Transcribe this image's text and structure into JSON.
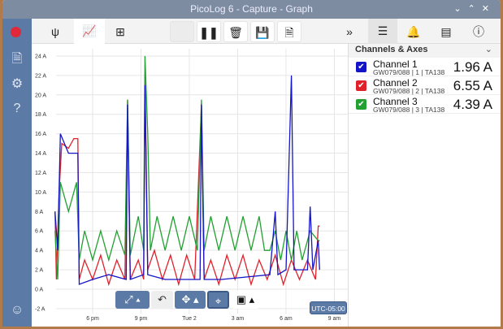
{
  "window": {
    "title": "PicoLog 6 - Capture - Graph",
    "controls": [
      "⌄",
      "⌃",
      "✕"
    ]
  },
  "sidebar": {
    "icons": [
      "record-icon",
      "file-icon",
      "settings-icon",
      "help-icon",
      "smiley-icon"
    ]
  },
  "toolbar": {
    "icons": [
      "usb-icon",
      "graph-icon",
      "table-icon",
      "pause-icon",
      "delete-icon",
      "save-icon",
      "export-icon",
      "more-icon",
      "channels-list-icon",
      "alarm-icon",
      "notes-icon",
      "info-icon"
    ]
  },
  "panel": {
    "title": "Channels & Axes",
    "channels": [
      {
        "name": "Channel 1",
        "source": "GW079/088 | 1 | TA138",
        "value": "1.96 A",
        "color": "#1414c8"
      },
      {
        "name": "Channel 2",
        "source": "GW079/088 | 2 | TA138",
        "value": "6.55 A",
        "color": "#e0202a"
      },
      {
        "name": "Channel 3",
        "source": "GW079/088 | 3 | TA138",
        "value": "4.39 A",
        "color": "#22a032"
      }
    ]
  },
  "graph_tools": {
    "timezone": "UTC-05:00"
  },
  "chart_data": {
    "type": "line",
    "ylim": [
      -2,
      25
    ],
    "grid": true,
    "y_ticks": [
      "-2 A",
      "0 A",
      "2 A",
      "4 A",
      "6 A",
      "8 A",
      "10 A",
      "12 A",
      "14 A",
      "16 A",
      "18 A",
      "20 A",
      "22 A",
      "24 A"
    ],
    "x_ticks": [
      {
        "label": "6 pm",
        "t": "Mon 18:00"
      },
      {
        "label": "9 pm",
        "t": "Mon 21:00"
      },
      {
        "label": "Tue 2",
        "t": "Tue 00:00"
      },
      {
        "label": "3 am",
        "t": "Tue 03:00"
      },
      {
        "label": "6 am",
        "t": "Tue 06:00"
      },
      {
        "label": "9 am",
        "t": "Tue 09:00"
      }
    ],
    "series": [
      {
        "name": "Channel 2",
        "color": "#e0202a",
        "points": [
          [
            "Mon 15:40",
            8
          ],
          [
            "Mon 15:45",
            1
          ],
          [
            "Mon 15:55",
            10
          ],
          [
            "Mon 16:05",
            15
          ],
          [
            "Mon 16:30",
            14.5
          ],
          [
            "Mon 16:50",
            15.5
          ],
          [
            "Mon 17:05",
            15.5
          ],
          [
            "Mon 17:10",
            1
          ],
          [
            "Mon 17:30",
            3
          ],
          [
            "Mon 18:00",
            1
          ],
          [
            "Mon 18:30",
            3.5
          ],
          [
            "Mon 19:00",
            0.5
          ],
          [
            "Mon 19:30",
            3
          ],
          [
            "Mon 20:00",
            1
          ],
          [
            "Mon 20:10",
            19.5
          ],
          [
            "Mon 20:20",
            1
          ],
          [
            "Mon 20:50",
            3
          ],
          [
            "Mon 21:10",
            1
          ],
          [
            "Mon 21:15",
            22
          ],
          [
            "Mon 21:25",
            2
          ],
          [
            "Mon 21:50",
            4
          ],
          [
            "Mon 22:20",
            1
          ],
          [
            "Mon 22:50",
            3.5
          ],
          [
            "Mon 23:20",
            0.5
          ],
          [
            "Mon 23:50",
            3.5
          ],
          [
            "Tue 00:20",
            1
          ],
          [
            "Tue 00:45",
            19
          ],
          [
            "Tue 00:55",
            1
          ],
          [
            "Tue 01:20",
            3
          ],
          [
            "Tue 01:50",
            0.5
          ],
          [
            "Tue 02:20",
            3.5
          ],
          [
            "Tue 02:50",
            1
          ],
          [
            "Tue 03:20",
            3.5
          ],
          [
            "Tue 03:50",
            0.5
          ],
          [
            "Tue 04:20",
            3
          ],
          [
            "Tue 04:50",
            1
          ],
          [
            "Tue 05:20",
            3.5
          ],
          [
            "Tue 05:50",
            0.5
          ],
          [
            "Tue 06:20",
            3
          ],
          [
            "Tue 06:50",
            1
          ],
          [
            "Tue 07:20",
            3
          ],
          [
            "Tue 07:50",
            1
          ],
          [
            "Tue 08:00",
            6.5
          ],
          [
            "Tue 08:05",
            6.5
          ]
        ]
      },
      {
        "name": "Channel 3",
        "color": "#22a032",
        "points": [
          [
            "Mon 15:40",
            6
          ],
          [
            "Mon 15:50",
            1
          ],
          [
            "Mon 16:00",
            11
          ],
          [
            "Mon 16:30",
            8
          ],
          [
            "Mon 17:00",
            11
          ],
          [
            "Mon 17:10",
            3
          ],
          [
            "Mon 17:30",
            6
          ],
          [
            "Mon 18:00",
            3
          ],
          [
            "Mon 18:30",
            6
          ],
          [
            "Mon 19:00",
            3
          ],
          [
            "Mon 19:30",
            6
          ],
          [
            "Mon 20:00",
            3.5
          ],
          [
            "Mon 20:10",
            19.5
          ],
          [
            "Mon 20:20",
            3.5
          ],
          [
            "Mon 20:50",
            7.5
          ],
          [
            "Mon 21:10",
            4
          ],
          [
            "Mon 21:15",
            24
          ],
          [
            "Mon 21:25",
            16
          ],
          [
            "Mon 21:35",
            4
          ],
          [
            "Mon 22:00",
            7.5
          ],
          [
            "Mon 22:30",
            4
          ],
          [
            "Mon 23:00",
            7.5
          ],
          [
            "Mon 23:30",
            4
          ],
          [
            "Tue 00:00",
            7.5
          ],
          [
            "Tue 00:30",
            4
          ],
          [
            "Tue 00:45",
            19.5
          ],
          [
            "Tue 00:55",
            4
          ],
          [
            "Tue 01:20",
            7.5
          ],
          [
            "Tue 01:50",
            4
          ],
          [
            "Tue 02:20",
            7.5
          ],
          [
            "Tue 02:50",
            4
          ],
          [
            "Tue 03:20",
            7.5
          ],
          [
            "Tue 03:50",
            4
          ],
          [
            "Tue 04:20",
            7.5
          ],
          [
            "Tue 04:40",
            4
          ],
          [
            "Tue 05:00",
            4
          ],
          [
            "Tue 05:20",
            6
          ],
          [
            "Tue 05:40",
            3
          ],
          [
            "Tue 06:00",
            6
          ],
          [
            "Tue 06:20",
            3
          ],
          [
            "Tue 06:40",
            6
          ],
          [
            "Tue 07:00",
            3
          ],
          [
            "Tue 07:30",
            6
          ],
          [
            "Tue 08:00",
            5
          ],
          [
            "Tue 08:05",
            5
          ]
        ]
      },
      {
        "name": "Channel 1",
        "color": "#1414c8",
        "points": [
          [
            "Mon 15:40",
            8
          ],
          [
            "Mon 15:50",
            4
          ],
          [
            "Mon 16:00",
            16
          ],
          [
            "Mon 16:15",
            15
          ],
          [
            "Mon 16:30",
            14
          ],
          [
            "Mon 17:05",
            14
          ],
          [
            "Mon 17:10",
            0.5
          ],
          [
            "Mon 18:00",
            1
          ],
          [
            "Mon 19:00",
            1.5
          ],
          [
            "Mon 20:05",
            1
          ],
          [
            "Mon 20:10",
            19
          ],
          [
            "Mon 20:20",
            1
          ],
          [
            "Mon 21:10",
            1.5
          ],
          [
            "Mon 21:15",
            21
          ],
          [
            "Mon 21:25",
            1.5
          ],
          [
            "Mon 22:30",
            1
          ],
          [
            "Tue 00:40",
            1
          ],
          [
            "Tue 00:45",
            19
          ],
          [
            "Tue 00:55",
            1
          ],
          [
            "Tue 02:00",
            1
          ],
          [
            "Tue 05:00",
            1.5
          ],
          [
            "Tue 05:20",
            8
          ],
          [
            "Tue 05:30",
            1.5
          ],
          [
            "Tue 06:00",
            2
          ],
          [
            "Tue 06:20",
            22
          ],
          [
            "Tue 06:30",
            2
          ],
          [
            "Tue 07:00",
            2
          ],
          [
            "Tue 07:20",
            2
          ],
          [
            "Tue 07:30",
            8.5
          ],
          [
            "Tue 07:40",
            2
          ],
          [
            "Tue 08:00",
            5
          ],
          [
            "Tue 08:05",
            2
          ]
        ]
      }
    ]
  }
}
